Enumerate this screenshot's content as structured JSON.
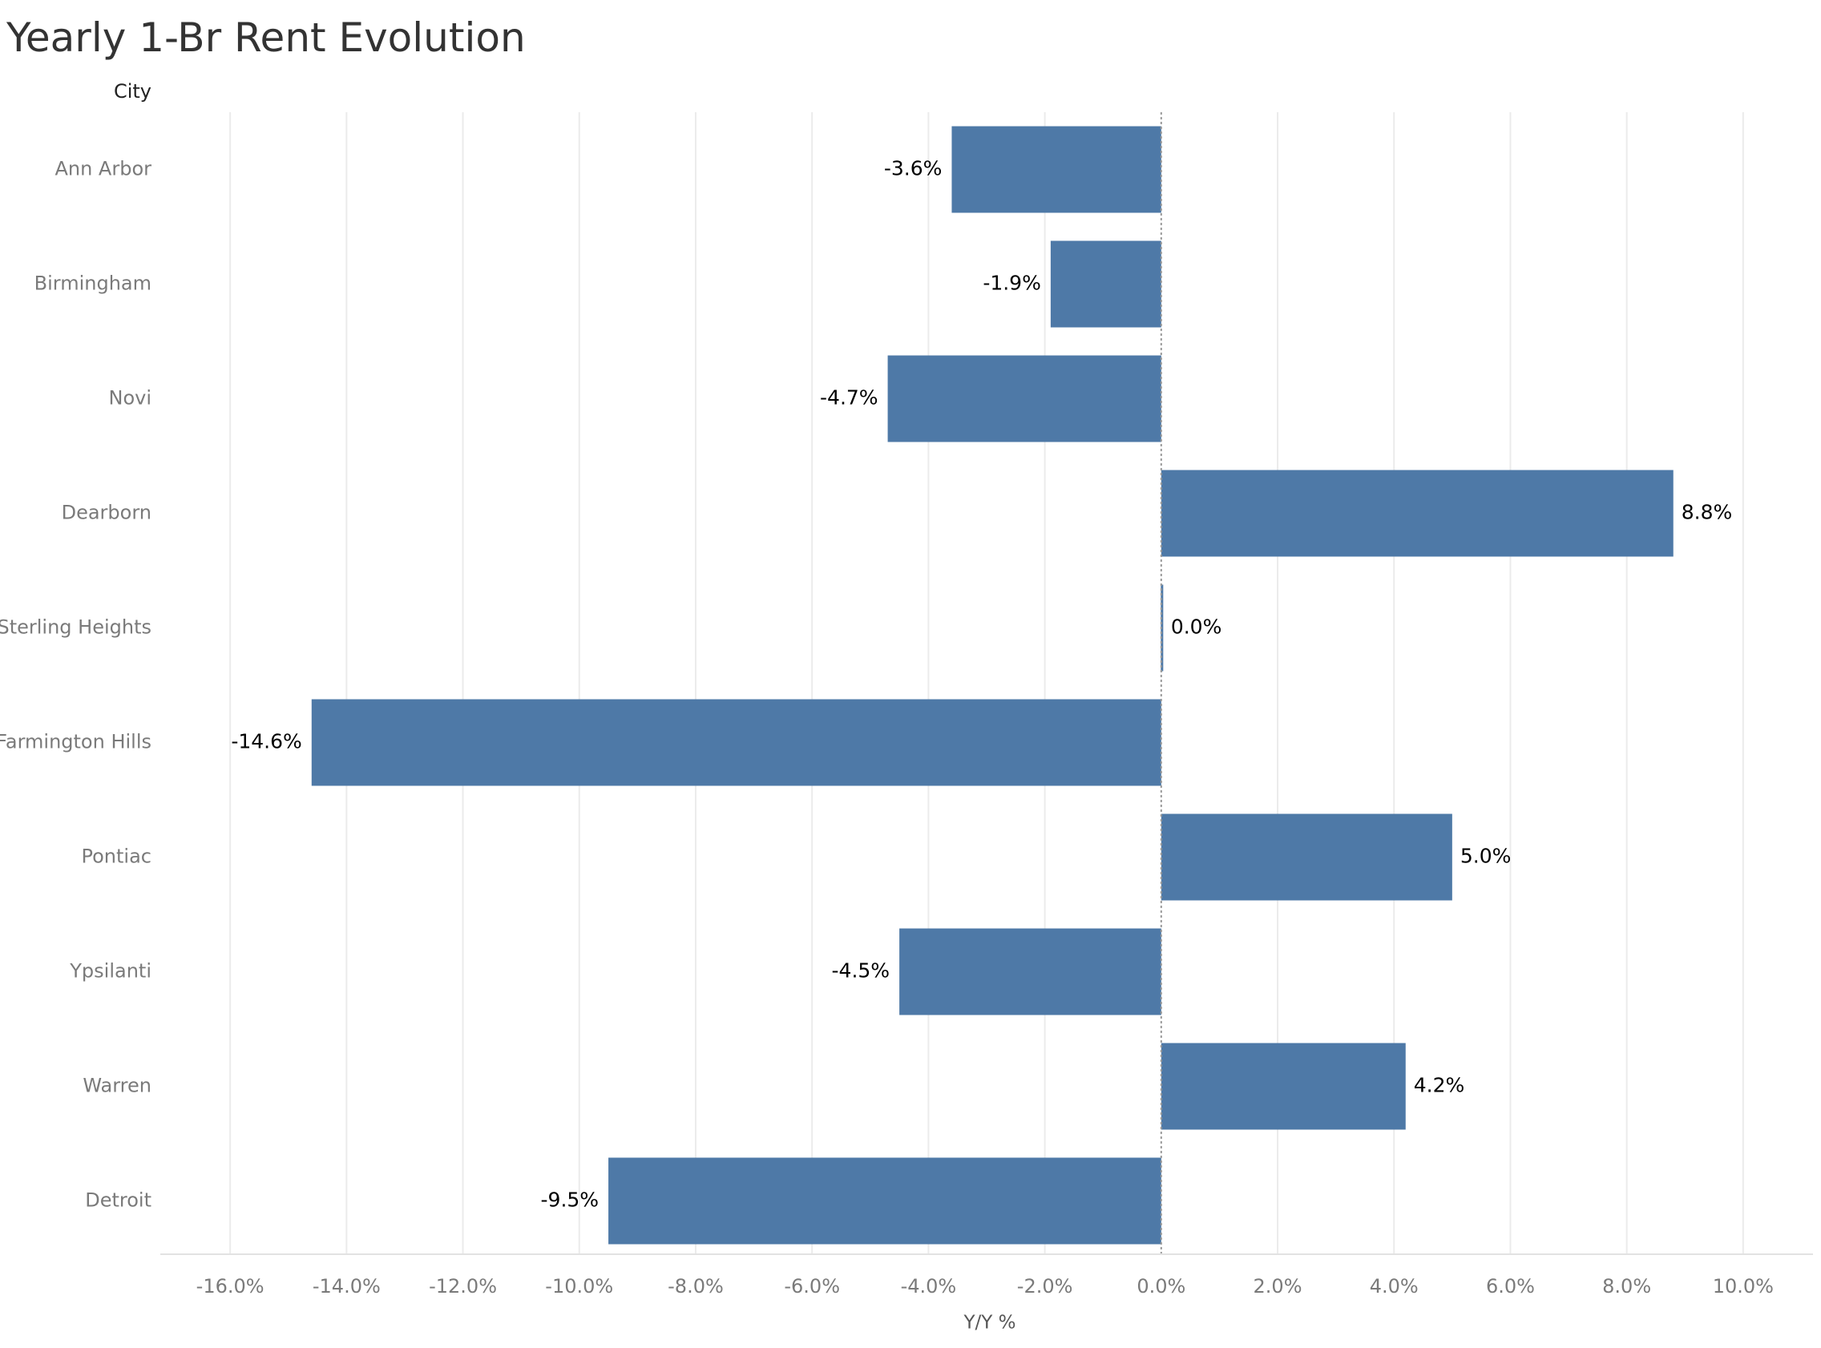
{
  "title": "Yearly 1-Br Rent Evolution",
  "chart_data": {
    "type": "bar",
    "orientation": "horizontal",
    "title": "Yearly 1-Br Rent Evolution",
    "category_axis_label": "City",
    "xlabel": "Y/Y %",
    "ylabel": "City",
    "categories": [
      "Ann Arbor",
      "Birmingham",
      "Novi",
      "Dearborn",
      "Sterling Heights",
      "Farmington Hills",
      "Pontiac",
      "Ypsilanti",
      "Warren",
      "Detroit"
    ],
    "values": [
      -3.6,
      -1.9,
      -4.7,
      8.8,
      0.0,
      -14.6,
      5.0,
      -4.5,
      4.2,
      -9.5
    ],
    "data_labels": [
      "-3.6%",
      "-1.9%",
      "-4.7%",
      "8.8%",
      "0.0%",
      "-14.6%",
      "5.0%",
      "-4.5%",
      "4.2%",
      "-9.5%"
    ],
    "xlim": [
      -17.2,
      11.2
    ],
    "x_ticks": [
      -16,
      -14,
      -12,
      -10,
      -8,
      -6,
      -4,
      -2,
      0,
      2,
      4,
      6,
      8,
      10
    ],
    "x_tick_labels": [
      "-16.0%",
      "-14.0%",
      "-12.0%",
      "-10.0%",
      "-8.0%",
      "-6.0%",
      "-4.0%",
      "-2.0%",
      "0.0%",
      "2.0%",
      "4.0%",
      "6.0%",
      "8.0%",
      "10.0%"
    ],
    "grid": true,
    "bar_color": "#4e79a7",
    "grid_color": "#ebebeb",
    "axis_text_color": "#7a7a7a",
    "label_color": "#000000"
  }
}
